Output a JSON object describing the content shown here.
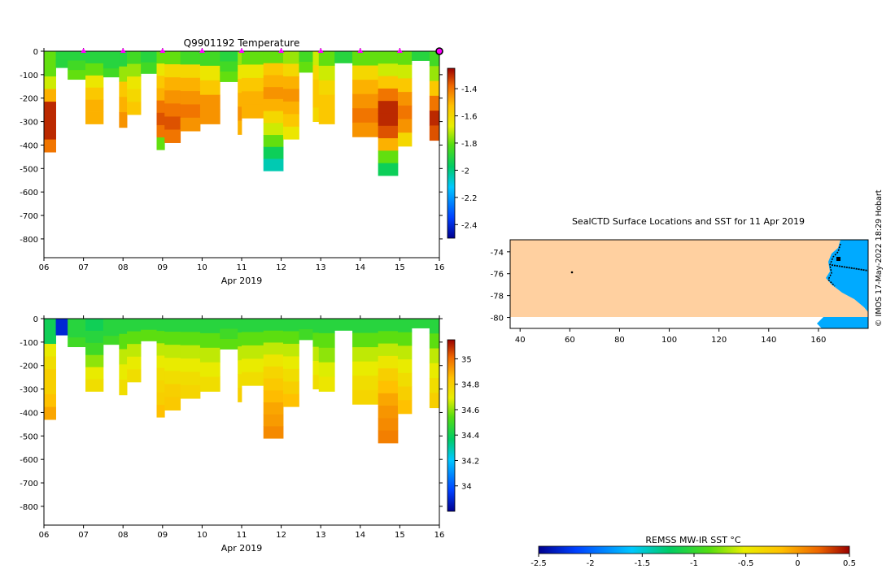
{
  "temperature_plot": {
    "title": "Q9901192  Temperature",
    "xlabel": "Apr 2019",
    "x_ticks": [
      "06",
      "07",
      "08",
      "09",
      "10",
      "11",
      "12",
      "13",
      "14",
      "15",
      "16"
    ],
    "y_ticks": [
      "0",
      "-100",
      "-200",
      "-300",
      "-400",
      "-500",
      "-600",
      "-700",
      "-800"
    ],
    "colorbar_ticks": [
      "-1.4",
      "-1.6",
      "-1.8",
      "-2",
      "-2.2",
      "-2.4"
    ]
  },
  "salinity_plot": {
    "xlabel": "Apr 2019",
    "x_ticks": [
      "06",
      "07",
      "08",
      "09",
      "10",
      "11",
      "12",
      "13",
      "14",
      "15",
      "16"
    ],
    "y_ticks": [
      "0",
      "-100",
      "-200",
      "-300",
      "-400",
      "-500",
      "-600",
      "-700",
      "-800"
    ],
    "colorbar_ticks": [
      "35",
      "34.8",
      "34.6",
      "34.4",
      "34.2",
      "34"
    ]
  },
  "map": {
    "title": "SealCTD Surface Locations and SST for 11 Apr 2019",
    "x_ticks": [
      "40",
      "60",
      "80",
      "100",
      "120",
      "140",
      "160"
    ],
    "y_ticks": [
      "-74",
      "-76",
      "-78",
      "-80"
    ],
    "sst_colorbar_label": "REMSS MW-IR SST °C",
    "sst_colorbar_ticks": [
      "-2.5",
      "-2",
      "-1.5",
      "-1",
      "-0.5",
      "0",
      "0.5"
    ]
  },
  "credit": "© IMOS 17-May-2022 18:29 Hobart",
  "colors": {
    "land": "#ffd0a0",
    "ocean": "#00aaff",
    "marker": "#ff00ff"
  },
  "chart_data": [
    {
      "type": "heatmap",
      "title": "Q9901192  Temperature",
      "xlabel": "Apr 2019",
      "ylabel": "",
      "xlim": [
        6,
        16
      ],
      "ylim": [
        -880,
        0
      ],
      "colorbar": {
        "min": -2.5,
        "max": -1.25,
        "ticks": [
          -1.4,
          -1.6,
          -1.8,
          -2,
          -2.2,
          -2.4
        ]
      },
      "surface_markers_day": [
        7,
        8,
        9,
        10,
        11,
        12,
        13,
        14,
        15,
        16
      ],
      "profiles": [
        {
          "day": 6.0,
          "max_depth": 430,
          "values": [
            -1.8,
            -1.8,
            -1.7,
            -1.5,
            -1.3,
            -1.3,
            -1.3,
            -1.4
          ]
        },
        {
          "day": 6.3,
          "max_depth": 70,
          "values": [
            -1.9,
            -1.9
          ]
        },
        {
          "day": 6.6,
          "max_depth": 120,
          "values": [
            -1.9,
            -1.85,
            -1.8
          ]
        },
        {
          "day": 7.05,
          "max_depth": 310,
          "values": [
            -1.9,
            -1.8,
            -1.65,
            -1.55,
            -1.5,
            -1.5
          ]
        },
        {
          "day": 7.5,
          "max_depth": 110,
          "values": [
            -1.9,
            -1.9,
            -1.85
          ]
        },
        {
          "day": 7.9,
          "max_depth": 325,
          "values": [
            -1.9,
            -1.75,
            -1.55,
            -1.5,
            -1.45
          ]
        },
        {
          "day": 8.1,
          "max_depth": 270,
          "values": [
            -1.85,
            -1.75,
            -1.65,
            -1.6,
            -1.55
          ]
        },
        {
          "day": 8.45,
          "max_depth": 95,
          "values": [
            -1.9,
            -1.85
          ]
        },
        {
          "day": 8.85,
          "max_depth": 420,
          "values": [
            -1.8,
            -1.65,
            -1.55,
            -1.5,
            -1.4,
            -1.35,
            -1.4,
            -1.8
          ]
        },
        {
          "day": 9.05,
          "max_depth": 390,
          "values": [
            -1.8,
            -1.6,
            -1.5,
            -1.45,
            -1.4,
            -1.35,
            -1.4
          ]
        },
        {
          "day": 9.45,
          "max_depth": 340,
          "values": [
            -1.85,
            -1.6,
            -1.5,
            -1.45,
            -1.4,
            -1.45
          ]
        },
        {
          "day": 9.95,
          "max_depth": 310,
          "values": [
            -1.85,
            -1.65,
            -1.55,
            -1.45,
            -1.45
          ]
        },
        {
          "day": 10.45,
          "max_depth": 130,
          "values": [
            -1.9,
            -1.85,
            -1.8
          ]
        },
        {
          "day": 10.9,
          "max_depth": 355,
          "values": [
            -1.75,
            -1.65,
            -1.55,
            -1.5,
            -1.45,
            -1.5
          ]
        },
        {
          "day": 11.0,
          "max_depth": 285,
          "values": [
            -1.8,
            -1.65,
            -1.55,
            -1.5,
            -1.5
          ]
        },
        {
          "day": 11.55,
          "max_depth": 510,
          "values": [
            -1.8,
            -1.55,
            -1.5,
            -1.45,
            -1.5,
            -1.6,
            -1.7,
            -1.8,
            -1.95,
            -2.05
          ]
        },
        {
          "day": 12.05,
          "max_depth": 375,
          "values": [
            -1.75,
            -1.6,
            -1.5,
            -1.45,
            -1.5,
            -1.55,
            -1.65
          ]
        },
        {
          "day": 12.45,
          "max_depth": 90,
          "values": [
            -1.85,
            -1.8
          ]
        },
        {
          "day": 12.8,
          "max_depth": 300,
          "values": [
            -1.7,
            -1.6,
            -1.55,
            -1.55,
            -1.6
          ]
        },
        {
          "day": 12.95,
          "max_depth": 310,
          "values": [
            -1.8,
            -1.7,
            -1.6,
            -1.55,
            -1.55
          ]
        },
        {
          "day": 13.35,
          "max_depth": 50,
          "values": [
            -1.9
          ]
        },
        {
          "day": 13.8,
          "max_depth": 365,
          "values": [
            -1.8,
            -1.6,
            -1.5,
            -1.45,
            -1.4,
            -1.45
          ]
        },
        {
          "day": 14.45,
          "max_depth": 530,
          "values": [
            -1.8,
            -1.7,
            -1.55,
            -1.4,
            -1.3,
            -1.3,
            -1.35,
            -1.5,
            -1.8,
            -1.95
          ]
        },
        {
          "day": 14.95,
          "max_depth": 405,
          "values": [
            -1.8,
            -1.7,
            -1.55,
            -1.45,
            -1.4,
            -1.45,
            -1.6
          ]
        },
        {
          "day": 15.3,
          "max_depth": 40,
          "values": [
            -1.9
          ]
        },
        {
          "day": 15.75,
          "max_depth": 380,
          "values": [
            -1.85,
            -1.75,
            -1.55,
            -1.4,
            -1.3,
            -1.35
          ]
        }
      ]
    },
    {
      "type": "heatmap",
      "title": "",
      "xlabel": "Apr 2019",
      "ylabel": "",
      "xlim": [
        6,
        16
      ],
      "ylim": [
        -880,
        0
      ],
      "colorbar": {
        "min": 33.8,
        "max": 35.15,
        "ticks": [
          35,
          34.8,
          34.6,
          34.4,
          34.2,
          34
        ]
      },
      "profiles": [
        {
          "day": 6.0,
          "max_depth": 430,
          "values": [
            34.4,
            34.4,
            34.7,
            34.75,
            34.8,
            34.8,
            34.85,
            34.9
          ]
        },
        {
          "day": 6.3,
          "max_depth": 70,
          "values": [
            33.9,
            33.9
          ]
        },
        {
          "day": 6.6,
          "max_depth": 120,
          "values": [
            34.45,
            34.45,
            34.5
          ]
        },
        {
          "day": 7.05,
          "max_depth": 310,
          "values": [
            34.4,
            34.45,
            34.5,
            34.6,
            34.7,
            34.75
          ]
        },
        {
          "day": 7.5,
          "max_depth": 110,
          "values": [
            34.45,
            34.45,
            34.5
          ]
        },
        {
          "day": 7.9,
          "max_depth": 325,
          "values": [
            34.45,
            34.55,
            34.65,
            34.7,
            34.75
          ]
        },
        {
          "day": 8.1,
          "max_depth": 270,
          "values": [
            34.45,
            34.55,
            34.65,
            34.7,
            34.75
          ]
        },
        {
          "day": 8.45,
          "max_depth": 95,
          "values": [
            34.45,
            34.55
          ]
        },
        {
          "day": 8.85,
          "max_depth": 420,
          "values": [
            34.45,
            34.55,
            34.65,
            34.7,
            34.75,
            34.78,
            34.8,
            34.85
          ]
        },
        {
          "day": 9.05,
          "max_depth": 390,
          "values": [
            34.45,
            34.55,
            34.65,
            34.7,
            34.75,
            34.8,
            34.82
          ]
        },
        {
          "day": 9.45,
          "max_depth": 340,
          "values": [
            34.45,
            34.55,
            34.65,
            34.7,
            34.75,
            34.78
          ]
        },
        {
          "day": 9.95,
          "max_depth": 310,
          "values": [
            34.45,
            34.55,
            34.65,
            34.7,
            34.75
          ]
        },
        {
          "day": 10.45,
          "max_depth": 130,
          "values": [
            34.45,
            34.5,
            34.55
          ]
        },
        {
          "day": 10.9,
          "max_depth": 355,
          "values": [
            34.45,
            34.55,
            34.65,
            34.7,
            34.75,
            34.8
          ]
        },
        {
          "day": 11.0,
          "max_depth": 285,
          "values": [
            34.45,
            34.55,
            34.65,
            34.7,
            34.75
          ]
        },
        {
          "day": 11.55,
          "max_depth": 510,
          "values": [
            34.45,
            34.55,
            34.65,
            34.72,
            34.78,
            34.82,
            34.86,
            34.9,
            34.92,
            34.95
          ]
        },
        {
          "day": 12.05,
          "max_depth": 375,
          "values": [
            34.45,
            34.55,
            34.65,
            34.7,
            34.75,
            34.8,
            34.85
          ]
        },
        {
          "day": 12.45,
          "max_depth": 90,
          "values": [
            34.45,
            34.5
          ]
        },
        {
          "day": 12.8,
          "max_depth": 300,
          "values": [
            34.45,
            34.55,
            34.65,
            34.7,
            34.75
          ]
        },
        {
          "day": 12.95,
          "max_depth": 310,
          "values": [
            34.45,
            34.55,
            34.6,
            34.68,
            34.72
          ]
        },
        {
          "day": 13.35,
          "max_depth": 50,
          "values": [
            34.45
          ]
        },
        {
          "day": 13.8,
          "max_depth": 365,
          "values": [
            34.45,
            34.55,
            34.65,
            34.7,
            34.75,
            34.78
          ]
        },
        {
          "day": 14.45,
          "max_depth": 530,
          "values": [
            34.45,
            34.55,
            34.65,
            34.72,
            34.8,
            34.85,
            34.9,
            34.93,
            34.95,
            34.97
          ]
        },
        {
          "day": 14.95,
          "max_depth": 405,
          "values": [
            34.45,
            34.55,
            34.65,
            34.7,
            34.75,
            34.8,
            34.85
          ]
        },
        {
          "day": 15.3,
          "max_depth": 40,
          "values": [
            34.45
          ]
        },
        {
          "day": 15.75,
          "max_depth": 380,
          "values": [
            34.45,
            34.55,
            34.65,
            34.7,
            34.75,
            34.8
          ]
        }
      ]
    },
    {
      "type": "map",
      "title": "SealCTD Surface Locations and SST for 11 Apr 2019",
      "xlim": [
        36,
        180
      ],
      "ylim": [
        -81,
        -72.9
      ],
      "land_boundary_lat": -80.0,
      "surface_locations": [
        {
          "lon": 60,
          "lat": -76
        }
      ],
      "colorbar": {
        "label": "REMSS MW-IR SST °C",
        "min": -2.5,
        "max": 0.5,
        "ticks": [
          -2.5,
          -2,
          -1.5,
          -1,
          -0.5,
          0,
          0.5
        ]
      }
    }
  ]
}
